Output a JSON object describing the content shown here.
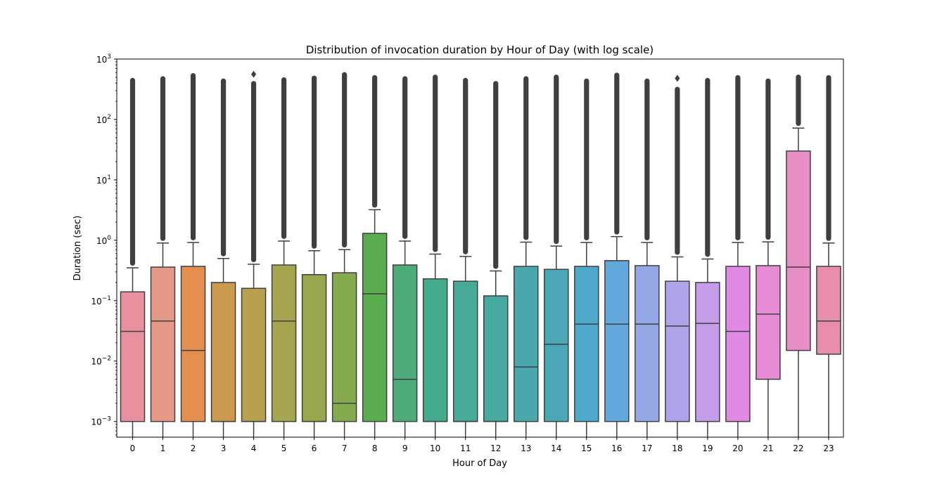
{
  "chart_data": {
    "type": "box",
    "title": "Distribution of invocation duration by Hour of Day (with log scale)",
    "xlabel": "Hour of Day",
    "ylabel": "Duration (sec)",
    "yscale": "log",
    "ylim": [
      0.00055,
      1000
    ],
    "yticks": [
      {
        "value": 0.001,
        "base": "10",
        "exp": "−3"
      },
      {
        "value": 0.01,
        "base": "10",
        "exp": "−2"
      },
      {
        "value": 0.1,
        "base": "10",
        "exp": "−1"
      },
      {
        "value": 1,
        "base": "10",
        "exp": "0"
      },
      {
        "value": 10,
        "base": "10",
        "exp": "1"
      },
      {
        "value": 100,
        "base": "10",
        "exp": "2"
      },
      {
        "value": 1000,
        "base": "10",
        "exp": "3"
      }
    ],
    "grid": false,
    "categories": [
      "0",
      "1",
      "2",
      "3",
      "4",
      "5",
      "6",
      "7",
      "8",
      "9",
      "10",
      "11",
      "12",
      "13",
      "14",
      "15",
      "16",
      "17",
      "18",
      "19",
      "20",
      "21",
      "22",
      "23"
    ],
    "boxes": [
      {
        "category": "0",
        "color": "#e8909d",
        "q1": 0.001,
        "median": 0.031,
        "q3": 0.14,
        "whisker_low": 0.00055,
        "whisker_high": 0.35,
        "flier_max": 450,
        "extra_fliers": []
      },
      {
        "category": "1",
        "color": "#e79988",
        "q1": 0.001,
        "median": 0.046,
        "q3": 0.36,
        "whisker_low": 0.00055,
        "whisker_high": 0.9,
        "flier_max": 480,
        "extra_fliers": []
      },
      {
        "category": "2",
        "color": "#e48f4f",
        "q1": 0.001,
        "median": 0.015,
        "q3": 0.37,
        "whisker_low": 0.00055,
        "whisker_high": 0.92,
        "flier_max": 540,
        "extra_fliers": []
      },
      {
        "category": "3",
        "color": "#cc9a4f",
        "q1": 0.001,
        "median": 0.001,
        "q3": 0.2,
        "whisker_low": 0.00055,
        "whisker_high": 0.5,
        "flier_max": 440,
        "extra_fliers": []
      },
      {
        "category": "4",
        "color": "#b9a04f",
        "q1": 0.001,
        "median": 0.001,
        "q3": 0.16,
        "whisker_low": 0.00055,
        "whisker_high": 0.4,
        "flier_max": 400,
        "extra_fliers": [
          560
        ]
      },
      {
        "category": "5",
        "color": "#a7a44f",
        "q1": 0.001,
        "median": 0.046,
        "q3": 0.39,
        "whisker_low": 0.00055,
        "whisker_high": 0.97,
        "flier_max": 460,
        "extra_fliers": []
      },
      {
        "category": "6",
        "color": "#97a84f",
        "q1": 0.001,
        "median": 0.001,
        "q3": 0.27,
        "whisker_low": 0.00055,
        "whisker_high": 0.67,
        "flier_max": 490,
        "extra_fliers": []
      },
      {
        "category": "7",
        "color": "#85ab4e",
        "q1": 0.001,
        "median": 0.002,
        "q3": 0.29,
        "whisker_low": 0.00055,
        "whisker_high": 0.7,
        "flier_max": 560,
        "extra_fliers": []
      },
      {
        "category": "8",
        "color": "#5aad4e",
        "q1": 0.001,
        "median": 0.13,
        "q3": 1.3,
        "whisker_low": 0.00055,
        "whisker_high": 3.2,
        "flier_max": 500,
        "extra_fliers": []
      },
      {
        "category": "9",
        "color": "#4fac7a",
        "q1": 0.001,
        "median": 0.005,
        "q3": 0.39,
        "whisker_low": 0.00055,
        "whisker_high": 0.97,
        "flier_max": 480,
        "extra_fliers": []
      },
      {
        "category": "10",
        "color": "#45ab8e",
        "q1": 0.001,
        "median": 0.001,
        "q3": 0.23,
        "whisker_low": 0.00055,
        "whisker_high": 0.59,
        "flier_max": 510,
        "extra_fliers": []
      },
      {
        "category": "11",
        "color": "#48aa99",
        "q1": 0.001,
        "median": 0.001,
        "q3": 0.21,
        "whisker_low": 0.00055,
        "whisker_high": 0.54,
        "flier_max": 450,
        "extra_fliers": []
      },
      {
        "category": "12",
        "color": "#49a9a3",
        "q1": 0.001,
        "median": 0.001,
        "q3": 0.12,
        "whisker_low": 0.00055,
        "whisker_high": 0.31,
        "flier_max": 400,
        "extra_fliers": []
      },
      {
        "category": "13",
        "color": "#4aa8ad",
        "q1": 0.001,
        "median": 0.008,
        "q3": 0.37,
        "whisker_low": 0.00055,
        "whisker_high": 0.93,
        "flier_max": 480,
        "extra_fliers": []
      },
      {
        "category": "14",
        "color": "#4ba7b6",
        "q1": 0.001,
        "median": 0.019,
        "q3": 0.33,
        "whisker_low": 0.00055,
        "whisker_high": 0.8,
        "flier_max": 510,
        "extra_fliers": []
      },
      {
        "category": "15",
        "color": "#4ea8c9",
        "q1": 0.001,
        "median": 0.041,
        "q3": 0.37,
        "whisker_low": 0.00055,
        "whisker_high": 0.92,
        "flier_max": 440,
        "extra_fliers": []
      },
      {
        "category": "16",
        "color": "#62a8db",
        "q1": 0.001,
        "median": 0.041,
        "q3": 0.46,
        "whisker_low": 0.00055,
        "whisker_high": 1.15,
        "flier_max": 550,
        "extra_fliers": []
      },
      {
        "category": "17",
        "color": "#94a8e6",
        "q1": 0.001,
        "median": 0.041,
        "q3": 0.38,
        "whisker_low": 0.00055,
        "whisker_high": 0.92,
        "flier_max": 440,
        "extra_fliers": []
      },
      {
        "category": "18",
        "color": "#afa4ea",
        "q1": 0.001,
        "median": 0.038,
        "q3": 0.21,
        "whisker_low": 0.00055,
        "whisker_high": 0.53,
        "flier_max": 320,
        "extra_fliers": [
          480
        ]
      },
      {
        "category": "19",
        "color": "#c49ce8",
        "q1": 0.001,
        "median": 0.042,
        "q3": 0.2,
        "whisker_low": 0.00055,
        "whisker_high": 0.49,
        "flier_max": 450,
        "extra_fliers": []
      },
      {
        "category": "20",
        "color": "#e08ae6",
        "q1": 0.001,
        "median": 0.031,
        "q3": 0.37,
        "whisker_low": 0.00055,
        "whisker_high": 0.92,
        "flier_max": 500,
        "extra_fliers": []
      },
      {
        "category": "21",
        "color": "#e68bd6",
        "q1": 0.005,
        "median": 0.06,
        "q3": 0.38,
        "whisker_low": 0.00055,
        "whisker_high": 0.94,
        "flier_max": 440,
        "extra_fliers": []
      },
      {
        "category": "22",
        "color": "#e78fc5",
        "q1": 0.015,
        "median": 0.36,
        "q3": 30,
        "whisker_low": 0.00055,
        "whisker_high": 72,
        "flier_max": 510,
        "extra_fliers": []
      },
      {
        "category": "23",
        "color": "#e68eab",
        "q1": 0.013,
        "median": 0.046,
        "q3": 0.37,
        "whisker_low": 0.00055,
        "whisker_high": 0.9,
        "flier_max": 500,
        "extra_fliers": []
      }
    ]
  }
}
